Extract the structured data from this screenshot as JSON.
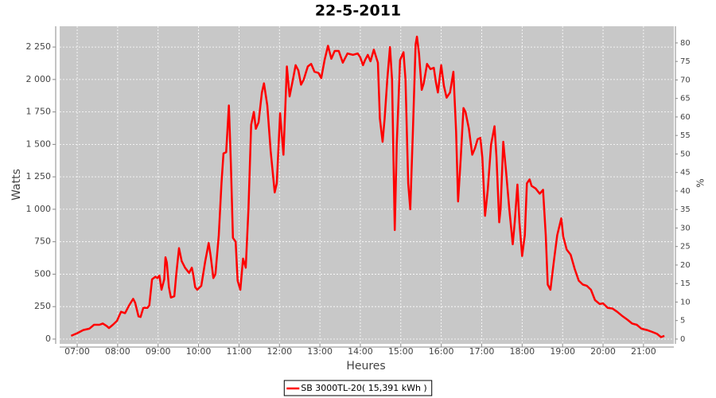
{
  "chart_data": {
    "type": "line",
    "title": "22-5-2011",
    "x_label": "Heures",
    "y_label": "Watts",
    "y2_label": "%",
    "x": [
      "06:51",
      "07:00",
      "07:09",
      "07:18",
      "07:25",
      "07:33",
      "07:38",
      "07:44",
      "07:47",
      "07:53",
      "07:59",
      "08:05",
      "08:11",
      "08:17",
      "08:23",
      "08:26",
      "08:31",
      "08:34",
      "08:38",
      "08:44",
      "08:47",
      "08:51",
      "08:56",
      "08:59",
      "09:02",
      "09:05",
      "09:09",
      "09:11",
      "09:13",
      "09:16",
      "09:19",
      "09:24",
      "09:27",
      "09:31",
      "09:35",
      "09:40",
      "09:46",
      "09:50",
      "09:52",
      "09:55",
      "09:58",
      "10:04",
      "10:10",
      "10:15",
      "10:18",
      "10:22",
      "10:25",
      "10:30",
      "10:34",
      "10:37",
      "10:41",
      "10:45",
      "10:48",
      "10:51",
      "10:55",
      "10:58",
      "11:02",
      "11:06",
      "11:10",
      "11:14",
      "11:18",
      "11:22",
      "11:25",
      "11:29",
      "11:34",
      "11:37",
      "11:42",
      "11:47",
      "11:53",
      "11:56",
      "12:01",
      "12:06",
      "12:11",
      "12:15",
      "12:20",
      "12:24",
      "12:28",
      "12:32",
      "12:36",
      "12:42",
      "12:47",
      "12:52",
      "12:58",
      "13:02",
      "13:07",
      "13:12",
      "13:17",
      "13:22",
      "13:28",
      "13:34",
      "13:41",
      "13:49",
      "13:56",
      "14:00",
      "14:04",
      "14:07",
      "14:11",
      "14:15",
      "14:20",
      "14:26",
      "14:29",
      "14:33",
      "14:36",
      "14:40",
      "14:44",
      "14:47",
      "14:51",
      "14:54",
      "14:59",
      "15:04",
      "15:07",
      "15:11",
      "15:14",
      "15:18",
      "15:22",
      "15:24",
      "15:27",
      "15:31",
      "15:34",
      "15:39",
      "15:44",
      "15:49",
      "15:52",
      "15:55",
      "16:00",
      "16:04",
      "16:08",
      "16:13",
      "16:18",
      "16:22",
      "16:25",
      "16:29",
      "16:33",
      "16:36",
      "16:41",
      "16:46",
      "16:50",
      "16:54",
      "16:58",
      "17:01",
      "17:05",
      "17:09",
      "17:14",
      "17:19",
      "17:22",
      "17:26",
      "17:28",
      "17:32",
      "17:36",
      "17:41",
      "17:46",
      "17:49",
      "17:53",
      "17:56",
      "18:00",
      "18:04",
      "18:07",
      "18:11",
      "18:14",
      "18:20",
      "18:26",
      "18:31",
      "18:35",
      "18:38",
      "18:42",
      "18:47",
      "18:52",
      "18:58",
      "19:01",
      "19:06",
      "19:12",
      "19:18",
      "19:24",
      "19:30",
      "19:36",
      "19:42",
      "19:48",
      "19:55",
      "20:00",
      "20:07",
      "20:14",
      "20:21",
      "20:28",
      "20:36",
      "20:43",
      "20:50",
      "20:57",
      "21:05",
      "21:13",
      "21:20",
      "21:26",
      "21:31"
    ],
    "series": [
      {
        "name": "SB 3000TL-20( 15,391 kWh  )",
        "color": "#ff0000",
        "values": [
          25,
          45,
          70,
          80,
          110,
          110,
          120,
          100,
          85,
          110,
          140,
          210,
          200,
          260,
          310,
          280,
          175,
          170,
          240,
          240,
          260,
          460,
          480,
          470,
          490,
          380,
          460,
          630,
          590,
          400,
          320,
          330,
          500,
          700,
          600,
          550,
          510,
          550,
          500,
          400,
          380,
          410,
          600,
          740,
          640,
          470,
          500,
          800,
          1200,
          1430,
          1440,
          1800,
          1350,
          780,
          750,
          450,
          380,
          620,
          550,
          1000,
          1650,
          1750,
          1620,
          1670,
          1900,
          1970,
          1800,
          1450,
          1130,
          1200,
          1740,
          1420,
          2100,
          1870,
          2000,
          2110,
          2070,
          1960,
          2000,
          2100,
          2120,
          2060,
          2050,
          2010,
          2150,
          2260,
          2160,
          2220,
          2220,
          2130,
          2200,
          2190,
          2200,
          2170,
          2110,
          2150,
          2190,
          2140,
          2230,
          2130,
          1700,
          1520,
          1700,
          2000,
          2250,
          2000,
          840,
          1500,
          2150,
          2210,
          2000,
          1200,
          1000,
          1600,
          2270,
          2330,
          2200,
          1920,
          1970,
          2120,
          2080,
          2090,
          1980,
          1900,
          2110,
          1950,
          1860,
          1900,
          2060,
          1600,
          1060,
          1400,
          1780,
          1750,
          1620,
          1420,
          1470,
          1540,
          1550,
          1400,
          950,
          1150,
          1500,
          1640,
          1400,
          900,
          1000,
          1520,
          1300,
          1000,
          730,
          900,
          1190,
          900,
          640,
          800,
          1200,
          1230,
          1180,
          1160,
          1120,
          1150,
          800,
          420,
          380,
          600,
          800,
          930,
          790,
          690,
          650,
          540,
          450,
          420,
          410,
          380,
          300,
          270,
          275,
          240,
          235,
          210,
          180,
          150,
          120,
          110,
          80,
          70,
          55,
          40,
          15,
          25
        ]
      }
    ],
    "xlim": [
      "06:34",
      "21:45"
    ],
    "xticks": [
      "07:00",
      "08:00",
      "09:00",
      "10:00",
      "11:00",
      "12:00",
      "13:00",
      "14:00",
      "15:00",
      "16:00",
      "17:00",
      "18:00",
      "19:00",
      "20:00",
      "21:00"
    ],
    "ylim": [
      -37,
      2410
    ],
    "yticks": [
      0,
      250,
      500,
      750,
      {
        "value": 1000,
        "label": "1 000"
      },
      {
        "value": 1250,
        "label": "1 250"
      },
      {
        "value": 1500,
        "label": "1 500"
      },
      {
        "value": 1750,
        "label": "1 750"
      },
      {
        "value": 2000,
        "label": "2 000"
      },
      {
        "value": 2250,
        "label": "2 250"
      }
    ],
    "y2lim": [
      -1.3,
      84.5
    ],
    "y2ticks": [
      0,
      5,
      10,
      15,
      20,
      25,
      30,
      35,
      40,
      45,
      50,
      55,
      60,
      65,
      70,
      75,
      80
    ],
    "grid": true,
    "legend": "bottom"
  }
}
